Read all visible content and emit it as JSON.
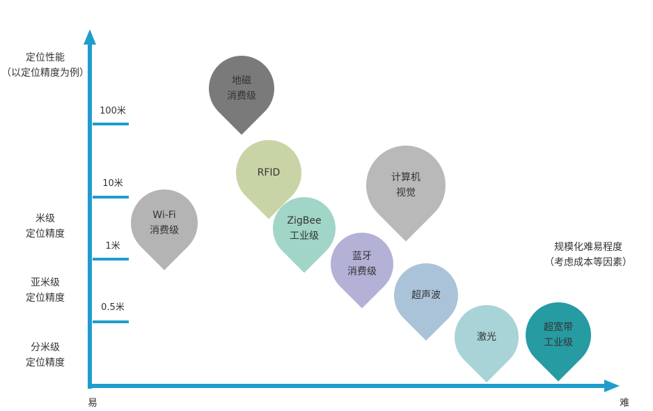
{
  "y_axis": {
    "title": "定位性能",
    "subtitle": "（以定位精度为例）",
    "ticks": [
      "100米",
      "10米",
      "1米",
      "0.5米"
    ],
    "bands": [
      {
        "line1": "米级",
        "line2": "定位精度"
      },
      {
        "line1": "亚米级",
        "line2": "定位精度"
      },
      {
        "line1": "分米级",
        "line2": "定位精度"
      }
    ]
  },
  "x_axis": {
    "title": "规模化难易程度",
    "subtitle": "（考虑成本等因素）",
    "start": "易",
    "end": "难"
  },
  "axis_color": "#1f9dcc",
  "pins": [
    {
      "line1": "地磁",
      "line2": "消费级",
      "color": "#7a7a7a"
    },
    {
      "line1": "RFID",
      "line2": "",
      "color": "#c9d4a6"
    },
    {
      "line1": "Wi-Fi",
      "line2": "消费级",
      "color": "#b4b4b4"
    },
    {
      "line1": "ZigBee",
      "line2": "工业级",
      "color": "#a0d5c7"
    },
    {
      "line1": "计算机",
      "line2": "视觉",
      "color": "#b9b9b9"
    },
    {
      "line1": "蓝牙",
      "line2": "消费级",
      "color": "#b4b1d7"
    },
    {
      "line1": "超声波",
      "line2": "",
      "color": "#aac3d9"
    },
    {
      "line1": "激光",
      "line2": "",
      "color": "#a8d3d7"
    },
    {
      "line1": "超宽带",
      "line2": "工业级",
      "color": "#279ba2"
    }
  ]
}
